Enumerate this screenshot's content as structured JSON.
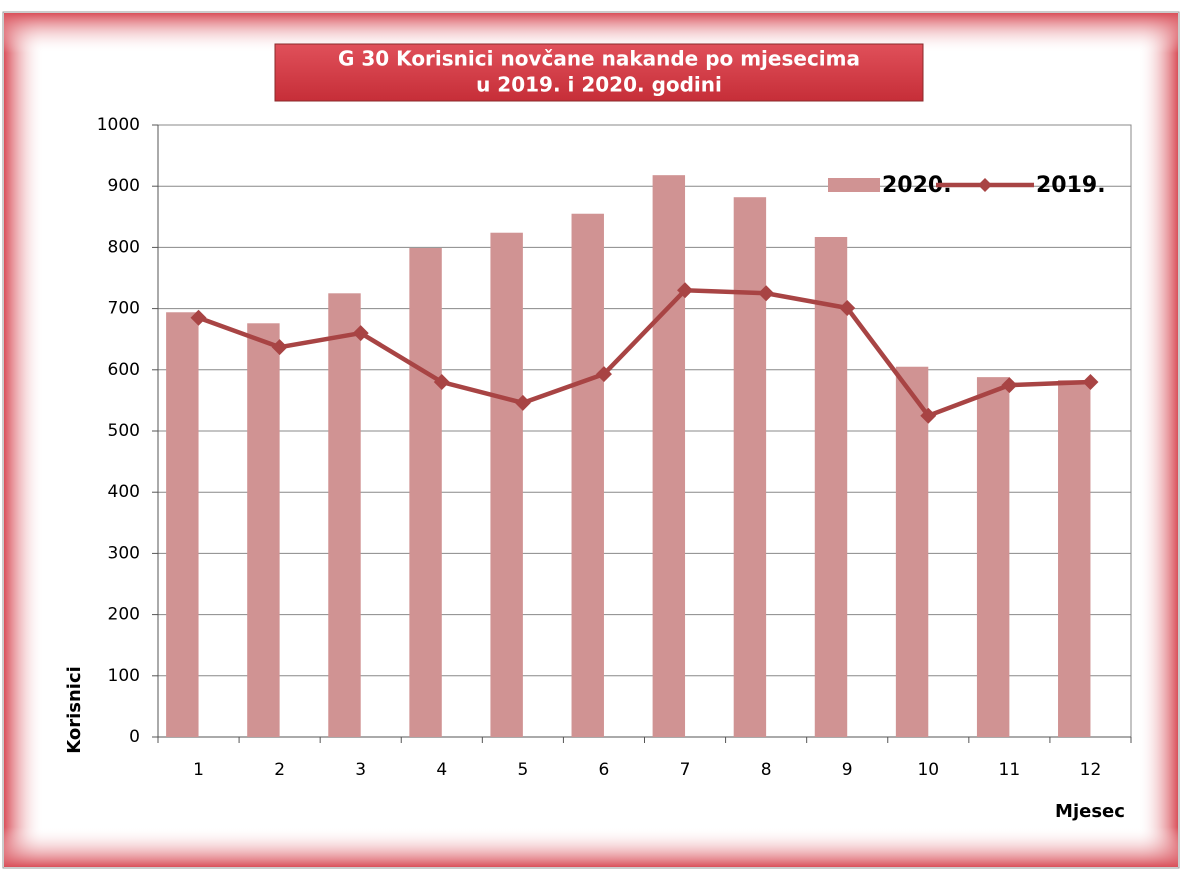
{
  "chart_data": {
    "type": "bar",
    "title": [
      "G 30  Korisnici novčane nakande po mjesecima",
      "u 2019. i 2020. godini"
    ],
    "x_label": "Mjesec",
    "y_label": "Korisnici",
    "categories": [
      "1",
      "2",
      "3",
      "4",
      "5",
      "6",
      "7",
      "8",
      "9",
      "10",
      "11",
      "12"
    ],
    "series": [
      {
        "name": "2020.",
        "type": "bar",
        "color": "#d09393",
        "values": [
          694,
          676,
          725,
          799,
          824,
          855,
          918,
          882,
          817,
          605,
          588,
          583
        ]
      },
      {
        "name": "2019.",
        "type": "line",
        "color": "#a84444",
        "values": [
          685,
          637,
          660,
          580,
          546,
          593,
          730,
          725,
          701,
          525,
          575,
          580
        ]
      }
    ],
    "ylim": [
      0,
      1000
    ],
    "yticks": [
      0,
      100,
      200,
      300,
      400,
      500,
      600,
      700,
      800,
      900,
      1000
    ],
    "grid": true,
    "legend": "top-right"
  }
}
